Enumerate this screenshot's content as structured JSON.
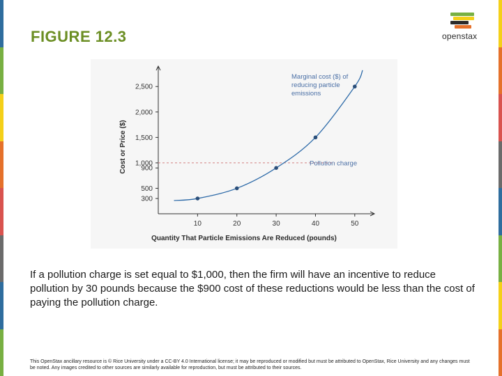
{
  "slide": {
    "title": "FIGURE 12.3",
    "caption": "If a pollution charge is set equal to $1,000, then the firm will have an incentive to reduce pollution by 30 pounds because the $900 cost of these reductions would be less than the cost of paying the pollution charge.",
    "footer": "This OpenStax ancillary resource is © Rice University under a CC-BY 4.0 International license; it may be reproduced or modified but must be attributed to OpenStax, Rice University and any changes must be noted. Any images credited to other sources are similarly available for reproduction, but must be attributed to their sources."
  },
  "logo": {
    "name": "openstax",
    "bar_colors": [
      "#78b042",
      "#f4d019",
      "#2b2b2b",
      "#e5712b",
      "#2f6d9e"
    ]
  },
  "colors": {
    "title": "#6b8e23",
    "curve": "#2d6aa8",
    "dashed_line": "#d48080",
    "axis": "#333333",
    "edge_colors": [
      "#2f6d9e",
      "#78b042",
      "#f4d019",
      "#e5712b",
      "#d9534f",
      "#6b6b6b"
    ]
  },
  "chart_data": {
    "type": "line",
    "title": "",
    "xlabel": "Quantity That Particle Emissions Are Reduced (pounds)",
    "ylabel": "Cost or Price ($)",
    "x_ticks": [
      10,
      20,
      30,
      40,
      50
    ],
    "x_tick_labels": [
      "10",
      "20",
      "30",
      "40",
      "50"
    ],
    "y_ticks": [
      300,
      500,
      900,
      1000,
      1500,
      2000,
      2500
    ],
    "y_tick_labels": [
      "300",
      "500",
      "900",
      "1,000",
      "1,500",
      "2,000",
      "2,500"
    ],
    "xlim": [
      0,
      55
    ],
    "ylim": [
      0,
      2900
    ],
    "grid": false,
    "series": [
      {
        "name": "Marginal cost ($) of reducing particle emissions",
        "curve_x": [
          4,
          10,
          20,
          30,
          40,
          50,
          52
        ],
        "curve_y": [
          260,
          300,
          500,
          900,
          1500,
          2500,
          2820
        ],
        "points": [
          {
            "x": 10,
            "y": 300
          },
          {
            "x": 20,
            "y": 500
          },
          {
            "x": 30,
            "y": 900
          },
          {
            "x": 40,
            "y": 1500
          },
          {
            "x": 50,
            "y": 2500
          }
        ]
      }
    ],
    "reference_lines": [
      {
        "name": "Pollution charge",
        "y": 1000
      }
    ],
    "annotations": [
      {
        "text": [
          "Marginal cost ($) of",
          "reducing particle",
          "emissions"
        ],
        "x": 32.5,
        "y": 2700
      },
      {
        "text": [
          "Pollution charge"
        ],
        "x": 32.5,
        "y": 1000
      }
    ]
  }
}
